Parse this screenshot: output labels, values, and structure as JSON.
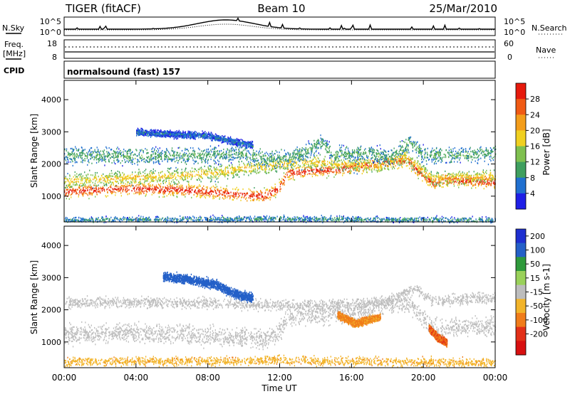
{
  "header": {
    "radar": "TIGER (fitACF)",
    "beam": "Beam 10",
    "date": "25/Mar/2010"
  },
  "top_panels": {
    "nsky_label": "N.Sky",
    "nsearch_label": "N.Search",
    "nsky_ticks": [
      "10^5",
      "10^0"
    ],
    "nsearch_ticks": [
      "10^5",
      "10^0"
    ],
    "freq_label": "Freq.",
    "freq_unit": "[MHz]",
    "freq_ticks": [
      "18",
      "8"
    ],
    "nave_label": "Nave",
    "nave_ticks": [
      "60",
      "0"
    ],
    "cpid_label": "CPID",
    "cpid_value": "normalsound (fast) 157"
  },
  "colors": {
    "power_scale": [
      "#1f1fe6",
      "#2070d0",
      "#3f9f5f",
      "#7fc04f",
      "#f0d020",
      "#f39d1a",
      "#f05a14",
      "#e61a0d"
    ],
    "velocity_scale": [
      "#1e2fd0",
      "#2460c8",
      "#2f9a3c",
      "#9ad15a",
      "#bdbdbd",
      "#f2b42a",
      "#f07c1a",
      "#e23018",
      "#d81010"
    ]
  },
  "chart_data": [
    {
      "type": "heatmap",
      "name": "power",
      "ylabel": "Slant Range [km]",
      "yticks": [
        "4000",
        "3000",
        "2000",
        "1000"
      ],
      "ylim": [
        200,
        4600
      ],
      "xlim": [
        0,
        24
      ],
      "colorbar_label": "Power [dB]",
      "colorbar_ticks": [
        "28",
        "24",
        "20",
        "16",
        "12",
        "8",
        "4"
      ],
      "colorbar_range": [
        0,
        32
      ],
      "bands": [
        {
          "x": [
            0.0,
            3.0,
            6.0,
            8.0,
            10.0,
            11.2,
            11.9,
            12.5,
            16.0,
            19.0,
            20.6,
            21.2,
            22.5,
            24.0
          ],
          "y": [
            1150,
            1250,
            1230,
            1160,
            1060,
            1020,
            1250,
            1750,
            1900,
            2150,
            1400,
            1550,
            1500,
            1450
          ],
          "width": 300,
          "level": 28
        },
        {
          "x": [
            0.0,
            6.0,
            8.5,
            10.0,
            11.5,
            12.5,
            14.0,
            16.0,
            17.5,
            19.0,
            20.5,
            22.0,
            24.0
          ],
          "y": [
            1500,
            1650,
            1750,
            1900,
            1950,
            2050,
            2100,
            2000,
            1950,
            2250,
            1550,
            1600,
            1650
          ],
          "width": 320,
          "level": 18
        },
        {
          "x": [
            0.0,
            4.0,
            8.0,
            10.0,
            11.0,
            12.5,
            13.8,
            14.3,
            15.0,
            16.2,
            16.8,
            18.0,
            19.3,
            20.0,
            22.0,
            24.0
          ],
          "y": [
            2300,
            2250,
            2300,
            2350,
            2200,
            2200,
            2500,
            2700,
            2300,
            2350,
            2400,
            2200,
            2700,
            2300,
            2300,
            2350
          ],
          "width": 380,
          "level": 10
        },
        {
          "x": [
            4.0,
            6.0,
            8.0,
            9.5,
            10.5
          ],
          "y": [
            3000,
            2950,
            2900,
            2700,
            2600
          ],
          "width": 150,
          "level": 6
        },
        {
          "x": [
            0.0,
            6.0,
            12.0,
            18.0,
            24.0
          ],
          "y": [
            280,
            300,
            320,
            290,
            280
          ],
          "width": 140,
          "level": 8
        }
      ]
    },
    {
      "type": "heatmap",
      "name": "velocity",
      "ylabel": "Slant Range [km]",
      "yticks": [
        "4000",
        "3000",
        "2000",
        "1000"
      ],
      "ylim": [
        200,
        4600
      ],
      "xlim": [
        0,
        24
      ],
      "xlabel": "Time UT",
      "xticks": [
        "00:00",
        "04:00",
        "08:00",
        "12:00",
        "16:00",
        "20:00",
        "00:00"
      ],
      "colorbar_label": "Velocity [m s-1]",
      "colorbar_ticks": [
        "200",
        "100",
        "50",
        "15",
        "-15",
        "-50",
        "-100",
        "-200"
      ],
      "bands": [
        {
          "x": [
            0.0,
            3.0,
            6.0,
            8.0,
            10.0,
            11.2,
            11.9,
            12.5,
            16.0,
            19.0,
            20.6,
            22.0,
            24.0
          ],
          "y": [
            1250,
            1300,
            1280,
            1220,
            1150,
            1100,
            1300,
            1800,
            1950,
            2300,
            1400,
            1500,
            1500
          ],
          "width": 420,
          "level": 0
        },
        {
          "x": [
            0.0,
            6.0,
            10.0,
            12.5,
            16.0,
            18.0,
            19.5,
            20.5,
            24.0
          ],
          "y": [
            2250,
            2250,
            2200,
            2150,
            2200,
            2300,
            2700,
            2300,
            2400
          ],
          "width": 240,
          "level": 0
        },
        {
          "x": [
            5.5,
            7.0,
            8.5,
            9.5,
            10.5
          ],
          "y": [
            3050,
            2950,
            2800,
            2500,
            2400
          ],
          "width": 200,
          "level": 150
        },
        {
          "x": [
            0.0,
            6.0,
            12.0,
            18.0,
            24.0
          ],
          "y": [
            400,
            420,
            450,
            400,
            380
          ],
          "width": 200,
          "level": -40
        },
        {
          "x": [
            15.2,
            16.2,
            17.6
          ],
          "y": [
            1850,
            1600,
            1800
          ],
          "width": 160,
          "level": -60
        },
        {
          "x": [
            20.3,
            20.8,
            21.3
          ],
          "y": [
            1450,
            1150,
            1000
          ],
          "width": 160,
          "level": -90
        }
      ]
    }
  ]
}
